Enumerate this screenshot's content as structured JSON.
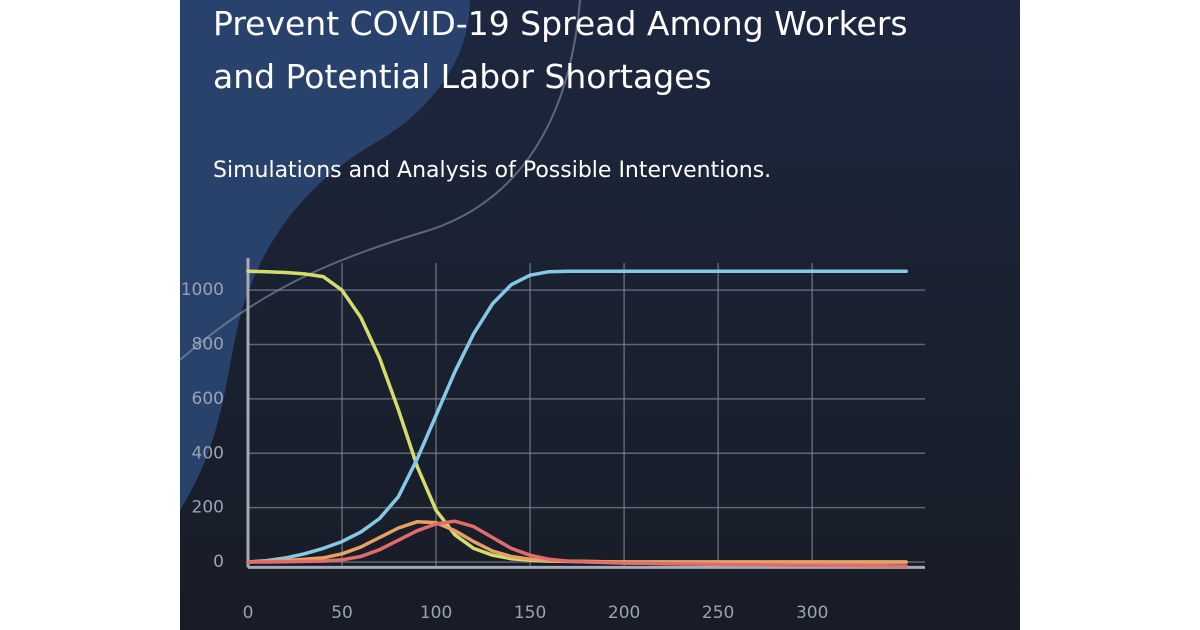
{
  "chart_data": {
    "type": "line",
    "title": [
      "Prevent COVID-19 Spread Among Workers",
      "and Potential Labor Shortages"
    ],
    "subtitle": "Simulations and Analysis of Possible Interventions.",
    "x": [
      0,
      10,
      20,
      30,
      40,
      50,
      60,
      70,
      80,
      90,
      100,
      110,
      120,
      130,
      140,
      150,
      160,
      170,
      180,
      190,
      200,
      210,
      220,
      230,
      240,
      250,
      260,
      270,
      280,
      290,
      300,
      310,
      320,
      330,
      340,
      350
    ],
    "series": [
      {
        "color": "#d4dc6c",
        "values": [
          1070,
          1068,
          1065,
          1060,
          1050,
          1000,
          900,
          750,
          560,
          350,
          190,
          100,
          50,
          25,
          12,
          6,
          3,
          2,
          1,
          0,
          0,
          0,
          0,
          0,
          0,
          0,
          0,
          0,
          0,
          0,
          0,
          0,
          0,
          0,
          0,
          0
        ]
      },
      {
        "color": "#86c9e6",
        "values": [
          0,
          5,
          15,
          30,
          50,
          75,
          110,
          160,
          240,
          380,
          540,
          700,
          840,
          950,
          1020,
          1055,
          1068,
          1070,
          1070,
          1070,
          1070,
          1070,
          1070,
          1070,
          1070,
          1070,
          1070,
          1070,
          1070,
          1070,
          1070,
          1070,
          1070,
          1070,
          1070,
          1070
        ]
      },
      {
        "color": "#e8a063",
        "values": [
          0,
          2,
          5,
          10,
          15,
          30,
          55,
          90,
          125,
          148,
          145,
          115,
          75,
          40,
          20,
          10,
          5,
          3,
          2,
          1,
          0,
          0,
          0,
          0,
          0,
          0,
          0,
          0,
          0,
          0,
          0,
          0,
          0,
          0,
          0,
          0
        ]
      },
      {
        "color": "#e26b6b",
        "values": [
          0,
          0,
          1,
          2,
          3,
          8,
          20,
          45,
          80,
          115,
          140,
          150,
          130,
          90,
          50,
          25,
          10,
          3,
          0,
          -2,
          -4,
          -5,
          -6,
          -7,
          -8,
          -9,
          -10,
          -10,
          -11,
          -12,
          -12,
          -13,
          -13,
          -14,
          -14,
          -15
        ]
      }
    ],
    "xlim": [
      0,
      360
    ],
    "ylim": [
      -20,
      1100
    ],
    "xticks": [
      0,
      50,
      100,
      150,
      200,
      250,
      300
    ],
    "yticks": [
      0,
      200,
      400,
      600,
      800,
      1000
    ],
    "grid": true
  }
}
